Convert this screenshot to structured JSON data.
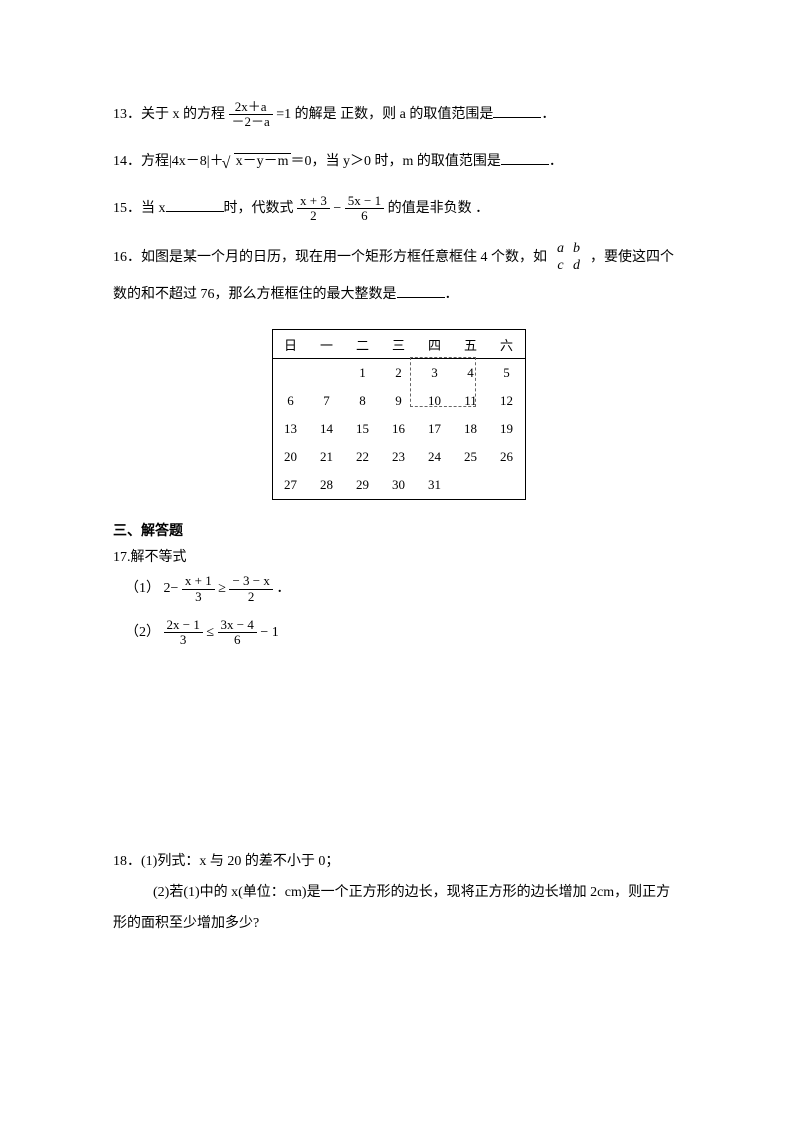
{
  "q13": {
    "prefix": "13．关于 x 的方程",
    "frac_num": "2x＋a",
    "frac_den": "－2－a",
    "mid": "=1 的解是 正数，则 a 的取值范围是",
    "suffix": "．"
  },
  "q14": {
    "prefix": "14．方程|4x－8|＋",
    "rad": "x－y－m",
    "mid": "＝0，当 y＞0 时，m 的取值范围是",
    "suffix": "．"
  },
  "q15": {
    "prefix": "15．当 x",
    "mid1": "时，代数式",
    "f1_num": "x + 3",
    "f1_den": "2",
    "minus": "−",
    "f2_num": "5x − 1",
    "f2_den": "6",
    "suffix": " 的值是非负数 ．"
  },
  "q16": {
    "line1_a": "16．如图是某一个月的日历，现在用一个矩形方框任意框住 4 个数，如",
    "line1_b": "，要使这四个",
    "matrix": [
      [
        "a",
        "b"
      ],
      [
        "c",
        "d"
      ]
    ],
    "line2": "数的和不超过 76，那么方框框住的最大整数是",
    "suffix": "．"
  },
  "calendar": {
    "headers": [
      "日",
      "一",
      "二",
      "三",
      "四",
      "五",
      "六"
    ],
    "rows": [
      [
        "",
        "",
        "1",
        "2",
        "3",
        "4",
        "5"
      ],
      [
        "6",
        "7",
        "8",
        "9",
        "10",
        "11",
        "12"
      ],
      [
        "13",
        "14",
        "15",
        "16",
        "17",
        "18",
        "19"
      ],
      [
        "20",
        "21",
        "22",
        "23",
        "24",
        "25",
        "26"
      ],
      [
        "27",
        "28",
        "29",
        "30",
        "31",
        "",
        ""
      ]
    ],
    "dashed_box": {
      "row_start": 0,
      "col_start": 4,
      "rows": 2,
      "cols": 2
    }
  },
  "section3": {
    "title": "三、解答题",
    "q17_title": "17.解不等式",
    "q17_1_label": "（1）",
    "q17_1_lhs_a": "2−",
    "q17_1_f1_num": "x + 1",
    "q17_1_f1_den": "3",
    "q17_1_op": "≥",
    "q17_1_f2_num": "− 3 − x",
    "q17_1_f2_den": "2",
    "q17_1_end": "．",
    "q17_2_label": "（2）",
    "q17_2_f1_num": "2x − 1",
    "q17_2_f1_den": "3",
    "q17_2_op": "≤",
    "q17_2_f2_num": "3x − 4",
    "q17_2_f2_den": "6",
    "q17_2_rhs": "− 1"
  },
  "q18": {
    "line1": "18．(1)列式：x 与 20 的差不小于 0；",
    "line2a": "(2)若(1)中的 x(单位：cm)是一个正方形的边长，现将正方形的边长增加 2cm，则正方",
    "line2b": "形的面积至少增加多少?"
  },
  "colors": {
    "text": "#000000",
    "bg": "#ffffff",
    "dashed": "#666666"
  }
}
